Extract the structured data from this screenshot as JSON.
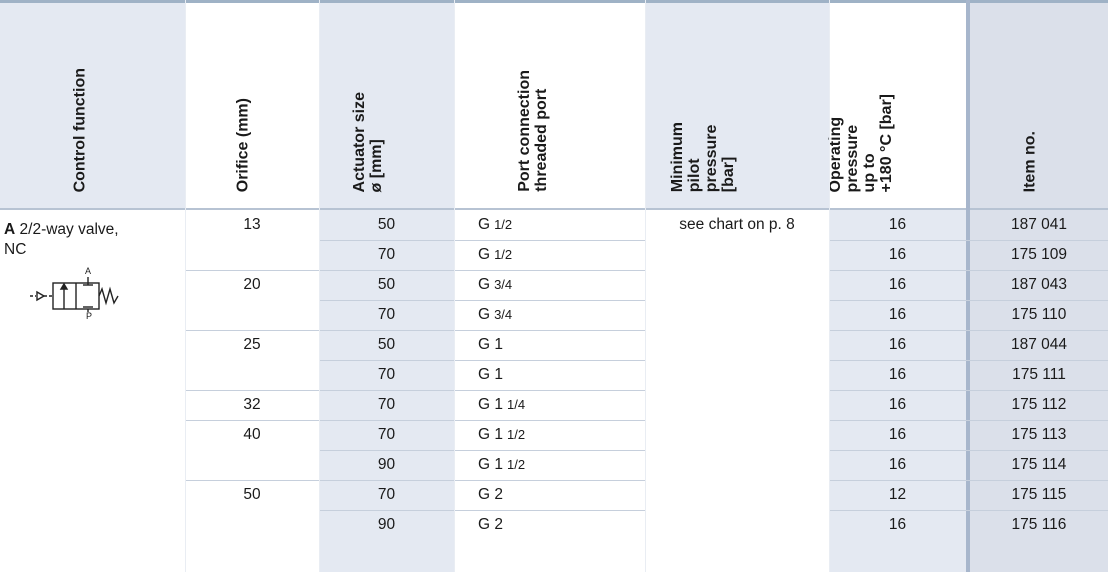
{
  "headers": {
    "control_function": "Control function",
    "orifice": "Orifice (mm)",
    "actuator": "Actuator size\nø [mm]",
    "port": "Port connection\nthreaded port",
    "min_pilot": "Minimum\npilot\npressure\n[bar]",
    "operating": "Operating\npressure\nup to\n+180 °C [bar]",
    "item_no": "Item no."
  },
  "control_function": {
    "letter": "A",
    "text": "2/2-way valve,",
    "text2": "NC",
    "symbol_port_a": "A",
    "symbol_port_p": "P"
  },
  "min_pilot_note": "see chart on p. 8",
  "orifices": [
    "13",
    "20",
    "25",
    "32",
    "40",
    "50"
  ],
  "rows": [
    {
      "actuator": "50",
      "port_main": "G",
      "port_size": "1/2",
      "operating": "16",
      "item": "187 041"
    },
    {
      "actuator": "70",
      "port_main": "G",
      "port_size": "1/2",
      "operating": "16",
      "item": "175 109"
    },
    {
      "actuator": "50",
      "port_main": "G",
      "port_size": "3/4",
      "operating": "16",
      "item": "187 043"
    },
    {
      "actuator": "70",
      "port_main": "G",
      "port_size": "3/4",
      "operating": "16",
      "item": "175 110"
    },
    {
      "actuator": "50",
      "port_main": "G 1",
      "port_size": "",
      "operating": "16",
      "item": "187 044"
    },
    {
      "actuator": "70",
      "port_main": "G 1",
      "port_size": "",
      "operating": "16",
      "item": "175 111"
    },
    {
      "actuator": "70",
      "port_main": "G 1",
      "port_size": "1/4",
      "operating": "16",
      "item": "175 112"
    },
    {
      "actuator": "70",
      "port_main": "G 1",
      "port_size": "1/2",
      "operating": "16",
      "item": "175 113"
    },
    {
      "actuator": "90",
      "port_main": "G 1",
      "port_size": "1/2",
      "operating": "16",
      "item": "175 114"
    },
    {
      "actuator": "70",
      "port_main": "G 2",
      "port_size": "",
      "operating": "12",
      "item": "175 115"
    },
    {
      "actuator": "90",
      "port_main": "G 2",
      "port_size": "",
      "operating": "16",
      "item": "175 116"
    }
  ]
}
